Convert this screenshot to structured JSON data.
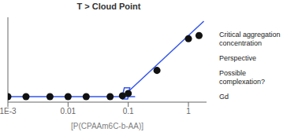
{
  "chart_data": {
    "type": "scatter",
    "title": "T > Cloud Point",
    "x_label": "[P(CPAAm6C-b-AA)]",
    "log": "x",
    "xlim": [
      0.001,
      2.0
    ],
    "xticks": [
      {
        "value": 0.001,
        "label": "1E-3"
      },
      0.01,
      0.1,
      1
    ],
    "ylim": [
      -0.02,
      1.05
    ],
    "tick_labels": "x",
    "grid": false,
    "series": [
      {
        "type": "line",
        "color": "#3355ee",
        "x": [
          0.001,
          0.13
        ],
        "values": [
          0.05,
          0.05
        ]
      },
      {
        "type": "line",
        "color": "#3355ee",
        "x": [
          0.075,
          1.8
        ],
        "values": [
          0.025,
          1.0
        ]
      },
      {
        "type": "line",
        "color": "#3355ee",
        "x": [
          0.078,
          0.098,
          0.106,
          0.086,
          0.078
        ],
        "values": [
          0.02,
          0.02,
          0.16,
          0.16,
          0.02
        ]
      },
      {
        "type": "scatter",
        "color": "#111111",
        "x": [
          0.001,
          0.002,
          0.005,
          0.01,
          0.02,
          0.05,
          0.08,
          0.1,
          0.3,
          1.0,
          1.5
        ],
        "values": [
          0.05,
          0.05,
          0.05,
          0.05,
          0.05,
          0.05,
          0.06,
          0.09,
          0.38,
          0.78,
          0.82
        ]
      }
    ],
    "annotations": [
      "Critical aggregation\nconcentration",
      "Perspective",
      "Possible\ncomplexation?",
      "Gd"
    ]
  }
}
